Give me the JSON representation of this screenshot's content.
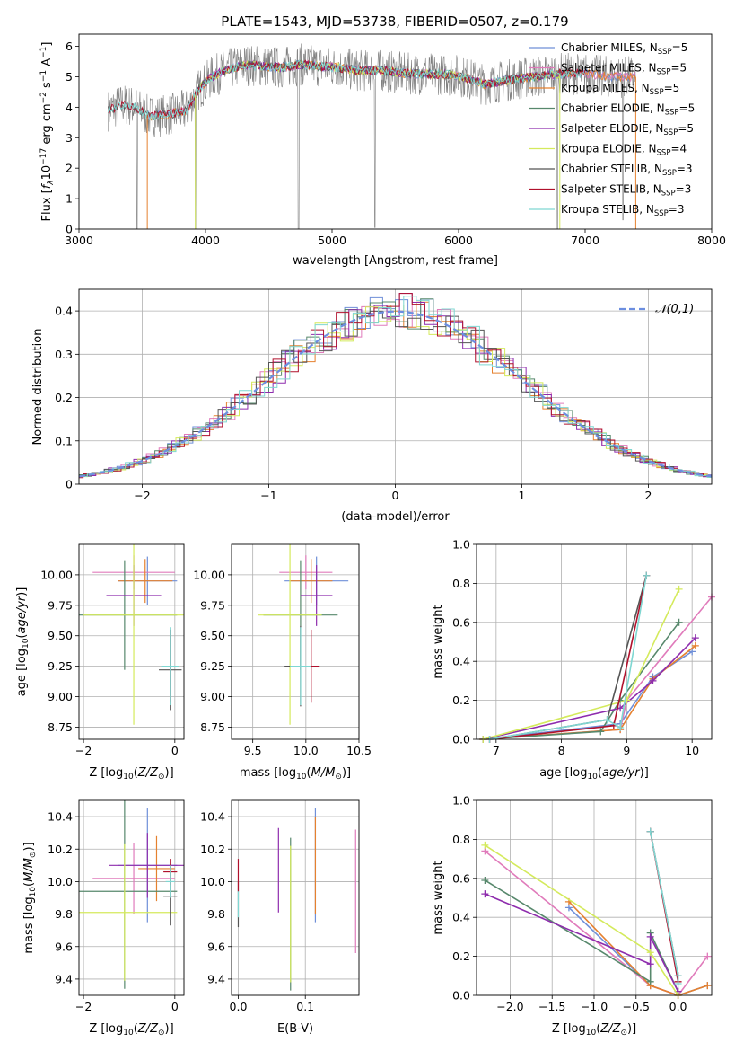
{
  "figure": {
    "title": "PLATE=1543, MJD=53738, FIBERID=0507, z=0.179"
  },
  "colors": {
    "chabrier_miles": "#6f8fd8",
    "salpeter_miles": "#e07bbb",
    "kroupa_miles": "#e5812f",
    "chabrier_elodie": "#57886c",
    "salpeter_elodie": "#8e2cad",
    "kroupa_elodie": "#d4ea5c",
    "chabrier_stelib": "#555555",
    "salpeter_stelib": "#b0112c",
    "kroupa_stelib": "#7fd7d2",
    "normal": "#6c8ee0",
    "data": "#808080"
  },
  "chart_data": [
    {
      "id": "spectrum",
      "type": "line",
      "xlabel": "wavelength [Angstrom, rest frame]",
      "ylabel": "Flux [f_λ 10^-17 erg cm^-2 s^-1 A^-1]",
      "xlim": [
        3000,
        8000
      ],
      "ylim": [
        0,
        6.4
      ],
      "xticks": [
        3000,
        4000,
        5000,
        6000,
        7000,
        8000
      ],
      "yticks": [
        0,
        1,
        2,
        3,
        4,
        5,
        6
      ],
      "legend_position": "top-right",
      "legend": [
        {
          "label": "Chabrier MILES, N",
          "sub": "SSP",
          "val": "=5",
          "color_key": "chabrier_miles"
        },
        {
          "label": "Salpeter MILES, N",
          "sub": "SSP",
          "val": "=5",
          "color_key": "salpeter_miles"
        },
        {
          "label": "Kroupa MILES, N",
          "sub": "SSP",
          "val": "=5",
          "color_key": "kroupa_miles"
        },
        {
          "label": "Chabrier ELODIE, N",
          "sub": "SSP",
          "val": "=5",
          "color_key": "chabrier_elodie"
        },
        {
          "label": "Salpeter ELODIE, N",
          "sub": "SSP",
          "val": "=5",
          "color_key": "salpeter_elodie"
        },
        {
          "label": "Kroupa ELODIE, N",
          "sub": "SSP",
          "val": "=4",
          "color_key": "kroupa_elodie"
        },
        {
          "label": "Chabrier STELIB, N",
          "sub": "SSP",
          "val": "=3",
          "color_key": "chabrier_stelib"
        },
        {
          "label": "Salpeter STELIB, N",
          "sub": "SSP",
          "val": "=3",
          "color_key": "salpeter_stelib"
        },
        {
          "label": "Kroupa STELIB, N",
          "sub": "SSP",
          "val": "=3",
          "color_key": "kroupa_stelib"
        }
      ],
      "continuum": {
        "x": [
          3230,
          3350,
          3450,
          3550,
          3700,
          3850,
          3950,
          4050,
          4150,
          4300,
          4450,
          4600,
          4750,
          4900,
          5050,
          5200,
          5400,
          5600,
          5800,
          6000,
          6200,
          6400,
          6600,
          6800,
          7000,
          7200,
          7400
        ],
        "y": [
          3.9,
          4.1,
          4.0,
          3.7,
          3.75,
          3.9,
          4.6,
          5.0,
          5.2,
          5.4,
          5.35,
          5.3,
          5.4,
          5.35,
          5.3,
          5.2,
          5.2,
          5.1,
          5.1,
          5.05,
          4.75,
          4.9,
          5.0,
          5.1,
          5.1,
          5.0,
          5.0
        ]
      },
      "dips": [
        {
          "x": 3460,
          "y": 0
        },
        {
          "x": 3920,
          "y": 0
        },
        {
          "x": 4735,
          "y": 0
        },
        {
          "x": 5340,
          "y": 0.05
        },
        {
          "x": 6780,
          "y": 0
        },
        {
          "x": 7300,
          "y": 0.3
        }
      ]
    },
    {
      "id": "residuals",
      "type": "line",
      "xlabel": "(data-model)/error",
      "ylabel": "Normed distribution",
      "xlim": [
        -2.5,
        2.5
      ],
      "ylim": [
        0,
        0.45
      ],
      "xticks": [
        -2,
        -1,
        0,
        1,
        2
      ],
      "yticks": [
        0.0,
        0.1,
        0.2,
        0.3,
        0.4
      ],
      "legend": "𝒩(0,1)",
      "legend_position": "top-right",
      "bin_width": 0.1
    },
    {
      "id": "age_vs_Z",
      "type": "scatter",
      "xlabel": "Z [log10(Z/Z⊙)]",
      "ylabel": "age [log10(age/yr)]",
      "xlim": [
        -2.1,
        0.2
      ],
      "ylim": [
        8.65,
        10.25
      ],
      "xticks": [
        -2,
        0
      ],
      "xticklabels": [
        "−2",
        "0"
      ],
      "yticks": [
        8.75,
        9.0,
        9.25,
        9.5,
        9.75,
        10.0
      ],
      "yticklabels": [
        "8.75",
        "9.00",
        "9.25",
        "9.50",
        "9.75",
        "10.00"
      ],
      "points": [
        {
          "c": "chabrier_miles",
          "x": -0.6,
          "xe": 0.65,
          "y": 9.95,
          "ye": 0.2
        },
        {
          "c": "salpeter_miles",
          "x": -0.9,
          "xe": 0.9,
          "y": 10.02,
          "ye": 0.14
        },
        {
          "c": "kroupa_miles",
          "x": -0.65,
          "xe": 0.6,
          "y": 9.95,
          "ye": 0.18
        },
        {
          "c": "chabrier_elodie",
          "x": -1.1,
          "xe": 1.15,
          "y": 9.67,
          "ye": 0.45
        },
        {
          "c": "salpeter_elodie",
          "x": -0.9,
          "xe": 0.6,
          "y": 9.83,
          "ye": 0.25
        },
        {
          "c": "kroupa_elodie",
          "x": -0.9,
          "xe": 1.1,
          "y": 9.67,
          "ye": 0.9
        },
        {
          "c": "chabrier_stelib",
          "x": -0.1,
          "xe": 0.25,
          "y": 9.22,
          "ye": 0.33
        },
        {
          "c": "salpeter_stelib",
          "x": -0.1,
          "xe": 0.15,
          "y": 9.25,
          "ye": 0.3
        },
        {
          "c": "kroupa_stelib",
          "x": -0.1,
          "xe": 0.2,
          "y": 9.25,
          "ye": 0.32
        }
      ]
    },
    {
      "id": "age_vs_mass",
      "type": "scatter",
      "xlabel": "mass [log10(M/M⊙)]",
      "xlim": [
        9.3,
        10.5
      ],
      "ylim": [
        8.65,
        10.25
      ],
      "xticks": [
        9.5,
        10.0,
        10.5
      ],
      "xticklabels": [
        "9.5",
        "10.0",
        "10.5"
      ],
      "yticks": [
        8.75,
        9.0,
        9.25,
        9.5,
        9.75,
        10.0
      ],
      "yticklabels": [
        "8.75",
        "9.00",
        "9.25",
        "9.50",
        "9.75",
        "10.00"
      ],
      "points": [
        {
          "c": "chabrier_miles",
          "x": 10.1,
          "xe": 0.3,
          "y": 9.95,
          "ye": 0.2
        },
        {
          "c": "salpeter_miles",
          "x": 10.0,
          "xe": 0.25,
          "y": 10.02,
          "ye": 0.14
        },
        {
          "c": "kroupa_miles",
          "x": 10.05,
          "xe": 0.2,
          "y": 9.95,
          "ye": 0.18
        },
        {
          "c": "chabrier_elodie",
          "x": 9.95,
          "xe": 0.35,
          "y": 9.67,
          "ye": 0.45
        },
        {
          "c": "salpeter_elodie",
          "x": 10.1,
          "xe": 0.15,
          "y": 9.83,
          "ye": 0.25
        },
        {
          "c": "kroupa_elodie",
          "x": 9.85,
          "xe": 0.3,
          "y": 9.67,
          "ye": 0.9
        },
        {
          "c": "chabrier_stelib",
          "x": 9.95,
          "xe": 0.15,
          "y": 9.25,
          "ye": 0.33
        },
        {
          "c": "salpeter_stelib",
          "x": 10.05,
          "xe": 0.08,
          "y": 9.25,
          "ye": 0.3
        },
        {
          "c": "kroupa_stelib",
          "x": 9.95,
          "xe": 0.1,
          "y": 9.25,
          "ye": 0.32
        }
      ]
    },
    {
      "id": "weight_vs_age",
      "type": "line",
      "xlabel": "age [log10(age/yr)]",
      "ylabel": "mass weight",
      "xlim": [
        6.7,
        10.3
      ],
      "ylim": [
        0,
        1.0
      ],
      "xticks": [
        7,
        8,
        9,
        10
      ],
      "yticks": [
        0.0,
        0.2,
        0.4,
        0.6,
        0.8,
        1.0
      ],
      "yticklabels": [
        "0.0",
        "0.2",
        "0.4",
        "0.6",
        "0.8",
        "1.0"
      ],
      "series": [
        {
          "c": "chabrier_miles",
          "x": [
            6.8,
            8.9,
            9.4,
            10.0
          ],
          "y": [
            0.0,
            0.08,
            0.32,
            0.45
          ]
        },
        {
          "c": "salpeter_miles",
          "x": [
            6.8,
            8.9,
            9.0,
            10.3
          ],
          "y": [
            0.0,
            0.05,
            0.2,
            0.73
          ]
        },
        {
          "c": "kroupa_miles",
          "x": [
            6.8,
            8.9,
            9.4,
            10.05
          ],
          "y": [
            0.0,
            0.05,
            0.31,
            0.48
          ]
        },
        {
          "c": "chabrier_elodie",
          "x": [
            6.8,
            8.6,
            8.9,
            9.8
          ],
          "y": [
            0.0,
            0.04,
            0.2,
            0.6
          ]
        },
        {
          "c": "salpeter_elodie",
          "x": [
            6.8,
            8.9,
            9.4,
            10.05
          ],
          "y": [
            0.0,
            0.16,
            0.3,
            0.52
          ]
        },
        {
          "c": "kroupa_elodie",
          "x": [
            6.8,
            9.0,
            9.8
          ],
          "y": [
            0.0,
            0.2,
            0.77
          ]
        },
        {
          "c": "chabrier_stelib",
          "x": [
            6.9,
            8.7,
            9.3
          ],
          "y": [
            0.0,
            0.1,
            0.84
          ]
        },
        {
          "c": "salpeter_stelib",
          "x": [
            6.9,
            8.8,
            9.3
          ],
          "y": [
            0.0,
            0.07,
            0.84
          ]
        },
        {
          "c": "kroupa_stelib",
          "x": [
            6.9,
            8.7,
            8.9,
            9.3
          ],
          "y": [
            0.0,
            0.1,
            0.06,
            0.84
          ]
        }
      ]
    },
    {
      "id": "mass_vs_Z",
      "type": "scatter",
      "xlabel": "Z [log10(Z/Z⊙)]",
      "ylabel": "mass [log10(M/M⊙)]",
      "xlim": [
        -2.1,
        0.2
      ],
      "ylim": [
        9.3,
        10.5
      ],
      "xticks": [
        -2,
        0
      ],
      "xticklabels": [
        "−2",
        "0"
      ],
      "yticks": [
        9.4,
        9.6,
        9.8,
        10.0,
        10.2,
        10.4
      ],
      "yticklabels": [
        "9.4",
        "9.6",
        "9.8",
        "10.0",
        "10.2",
        "10.4"
      ],
      "points": [
        {
          "c": "chabrier_miles",
          "x": -0.6,
          "xe": 0.65,
          "y": 10.1,
          "ye": 0.35
        },
        {
          "c": "salpeter_miles",
          "x": -0.9,
          "xe": 0.9,
          "y": 10.02,
          "ye": 0.22
        },
        {
          "c": "kroupa_miles",
          "x": -0.4,
          "xe": 0.4,
          "y": 10.08,
          "ye": 0.2
        },
        {
          "c": "chabrier_elodie",
          "x": -1.1,
          "xe": 1.15,
          "y": 9.94,
          "ye": 0.6
        },
        {
          "c": "salpeter_elodie",
          "x": -0.6,
          "xe": 0.85,
          "y": 10.1,
          "ye": 0.2
        },
        {
          "c": "kroupa_elodie",
          "x": -1.1,
          "xe": 1.15,
          "y": 9.81,
          "ye": 0.42
        },
        {
          "c": "chabrier_stelib",
          "x": -0.1,
          "xe": 0.15,
          "y": 9.91,
          "ye": 0.18
        },
        {
          "c": "salpeter_stelib",
          "x": -0.1,
          "xe": 0.15,
          "y": 10.06,
          "ye": 0.08
        },
        {
          "c": "kroupa_stelib",
          "x": -0.1,
          "xe": 0.1,
          "y": 10.0,
          "ye": 0.1
        }
      ]
    },
    {
      "id": "mass_vs_ebv",
      "type": "scatter",
      "xlabel": "E(B-V)",
      "xlim": [
        -0.01,
        0.18
      ],
      "ylim": [
        9.3,
        10.5
      ],
      "xticks": [
        0.0,
        0.1
      ],
      "xticklabels": [
        "0.0",
        "0.1"
      ],
      "yticks": [
        9.4,
        9.6,
        9.8,
        10.0,
        10.2,
        10.4
      ],
      "yticklabels": [
        "9.4",
        "9.6",
        "9.8",
        "10.0",
        "10.2",
        "10.4"
      ],
      "points": [
        {
          "c": "chabrier_miles",
          "x": 0.115,
          "y": 10.1,
          "ye": 0.35
        },
        {
          "c": "salpeter_miles",
          "x": 0.175,
          "y": 9.94,
          "ye": 0.38
        },
        {
          "c": "kroupa_miles",
          "x": 0.115,
          "y": 10.1,
          "ye": 0.3
        },
        {
          "c": "chabrier_elodie",
          "x": 0.078,
          "y": 9.8,
          "ye": 0.47
        },
        {
          "c": "salpeter_elodie",
          "x": 0.06,
          "y": 10.07,
          "ye": 0.26
        },
        {
          "c": "kroupa_elodie",
          "x": 0.078,
          "y": 9.8,
          "ye": 0.42
        },
        {
          "c": "chabrier_stelib",
          "x": 0.0,
          "y": 9.86,
          "ye": 0.14
        },
        {
          "c": "salpeter_stelib",
          "x": 0.0,
          "y": 10.04,
          "ye": 0.1
        },
        {
          "c": "kroupa_stelib",
          "x": 0.0,
          "y": 9.86,
          "ye": 0.08
        }
      ]
    },
    {
      "id": "weight_vs_Z",
      "type": "line",
      "xlabel": "Z [log10(Z/Z⊙)]",
      "ylabel": "mass weight",
      "xlim": [
        -2.4,
        0.4
      ],
      "ylim": [
        0,
        1.0
      ],
      "xticks": [
        -2.0,
        -1.5,
        -1.0,
        -0.5,
        0.0
      ],
      "xticklabels": [
        "−2.0",
        "−1.5",
        "−1.0",
        "−0.5",
        "0.0"
      ],
      "yticks": [
        0.0,
        0.2,
        0.4,
        0.6,
        0.8,
        1.0
      ],
      "yticklabels": [
        "0.0",
        "0.2",
        "0.4",
        "0.6",
        "0.8",
        "1.0"
      ],
      "series": [
        {
          "c": "chabrier_miles",
          "x": [
            -1.3,
            -0.33,
            0.0,
            0.35
          ],
          "y": [
            0.45,
            0.05,
            0.0,
            0.05
          ]
        },
        {
          "c": "salpeter_miles",
          "x": [
            -2.3,
            -0.33,
            0.0,
            0.35
          ],
          "y": [
            0.74,
            0.05,
            0.0,
            0.2
          ]
        },
        {
          "c": "kroupa_miles",
          "x": [
            -1.3,
            -0.33,
            0.0,
            0.35
          ],
          "y": [
            0.48,
            0.05,
            0.0,
            0.05
          ]
        },
        {
          "c": "chabrier_elodie",
          "x": [
            -2.3,
            -0.33,
            -0.33,
            0.0
          ],
          "y": [
            0.59,
            0.07,
            0.32,
            0.02
          ]
        },
        {
          "c": "salpeter_elodie",
          "x": [
            -2.3,
            -0.33,
            -0.33,
            0.0
          ],
          "y": [
            0.52,
            0.16,
            0.3,
            0.02
          ]
        },
        {
          "c": "kroupa_elodie",
          "x": [
            -2.3,
            -0.33,
            0.0
          ],
          "y": [
            0.77,
            0.22,
            0.0
          ]
        },
        {
          "c": "chabrier_stelib",
          "x": [
            -0.33,
            0.0
          ],
          "y": [
            0.84,
            0.1
          ]
        },
        {
          "c": "salpeter_stelib",
          "x": [
            -0.33,
            0.0
          ],
          "y": [
            0.84,
            0.07
          ]
        },
        {
          "c": "kroupa_stelib",
          "x": [
            -0.33,
            0.0,
            0.0
          ],
          "y": [
            0.84,
            0.1,
            0.06
          ]
        }
      ]
    }
  ]
}
